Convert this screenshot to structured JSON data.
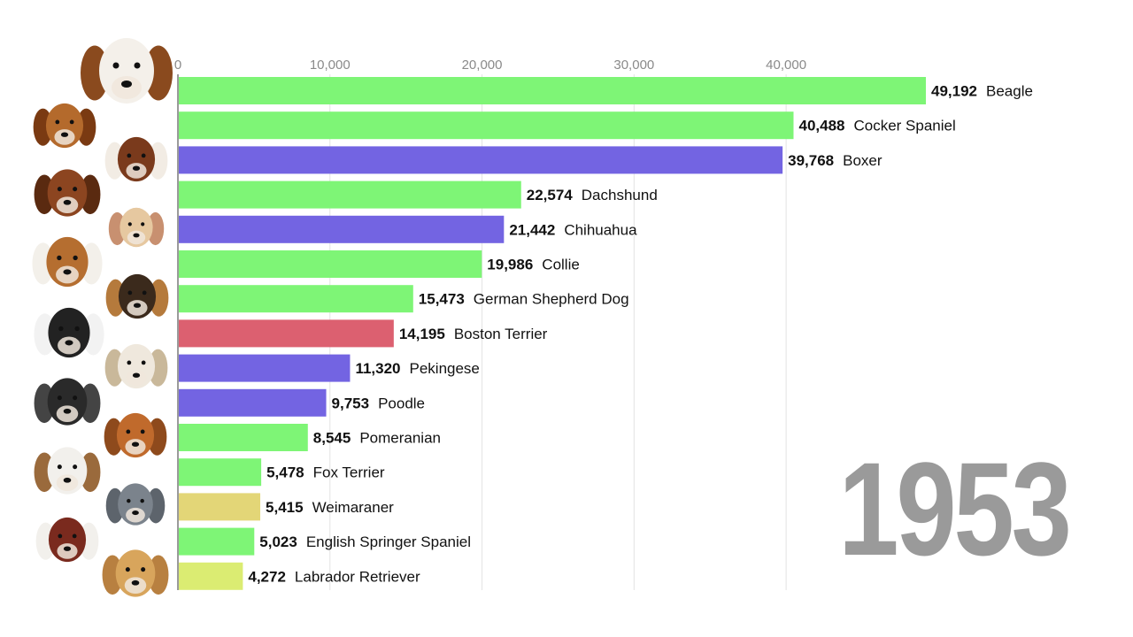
{
  "chart_data": {
    "type": "bar",
    "orientation": "horizontal",
    "year": "1953",
    "xlim": [
      0,
      49192
    ],
    "ticks": [
      0,
      10000,
      20000,
      30000,
      40000
    ],
    "tick_labels": [
      "0",
      "10,000",
      "20,000",
      "30,000",
      "40,000"
    ],
    "grid": true,
    "bars": [
      {
        "category": "Beagle",
        "value": 49192,
        "value_label": "49,192",
        "color": "#7ef576",
        "icon": "beagle-head-icon"
      },
      {
        "category": "Cocker Spaniel",
        "value": 40488,
        "value_label": "40,488",
        "color": "#7ef576",
        "icon": "cocker-spaniel-head-icon"
      },
      {
        "category": "Boxer",
        "value": 39768,
        "value_label": "39,768",
        "color": "#7364e2",
        "icon": "boxer-head-icon"
      },
      {
        "category": "Dachshund",
        "value": 22574,
        "value_label": "22,574",
        "color": "#7ef576",
        "icon": "dachshund-head-icon"
      },
      {
        "category": "Chihuahua",
        "value": 21442,
        "value_label": "21,442",
        "color": "#7364e2",
        "icon": "chihuahua-head-icon"
      },
      {
        "category": "Collie",
        "value": 19986,
        "value_label": "19,986",
        "color": "#7ef576",
        "icon": "collie-head-icon"
      },
      {
        "category": "German Shepherd Dog",
        "value": 15473,
        "value_label": "15,473",
        "color": "#7ef576",
        "icon": "german-shepherd-head-icon"
      },
      {
        "category": "Boston Terrier",
        "value": 14195,
        "value_label": "14,195",
        "color": "#dc6070",
        "icon": "boston-terrier-head-icon"
      },
      {
        "category": "Pekingese",
        "value": 11320,
        "value_label": "11,320",
        "color": "#7364e2",
        "icon": "pekingese-head-icon"
      },
      {
        "category": "Poodle",
        "value": 9753,
        "value_label": "9,753",
        "color": "#7364e2",
        "icon": "poodle-head-icon"
      },
      {
        "category": "Pomeranian",
        "value": 8545,
        "value_label": "8,545",
        "color": "#7ef576",
        "icon": "pomeranian-head-icon"
      },
      {
        "category": "Fox Terrier",
        "value": 5478,
        "value_label": "5,478",
        "color": "#7ef576",
        "icon": "fox-terrier-head-icon"
      },
      {
        "category": "Weimaraner",
        "value": 5415,
        "value_label": "5,415",
        "color": "#e3d677",
        "icon": "weimaraner-head-icon"
      },
      {
        "category": "English Springer Spaniel",
        "value": 5023,
        "value_label": "5,023",
        "color": "#7ef576",
        "icon": "english-springer-spaniel-head-icon"
      },
      {
        "category": "Labrador Retriever",
        "value": 4272,
        "value_label": "4,272",
        "color": "#dbec72",
        "icon": "labrador-retriever-head-icon"
      }
    ]
  }
}
